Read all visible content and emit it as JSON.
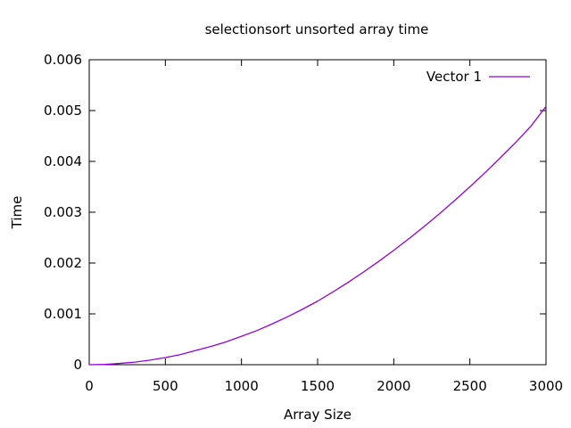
{
  "chart_data": {
    "type": "line",
    "title": "selectionsort unsorted array time",
    "xlabel": "Array Size",
    "ylabel": "Time",
    "xlim": [
      0,
      3000
    ],
    "ylim": [
      0,
      0.006
    ],
    "x_ticks": [
      "0",
      "500",
      "1000",
      "1500",
      "2000",
      "2500",
      "3000"
    ],
    "y_ticks": [
      "0",
      "0.001",
      "0.002",
      "0.003",
      "0.004",
      "0.005",
      "0.006"
    ],
    "grid": false,
    "legend": "top-right",
    "series": [
      {
        "name": "Vector 1",
        "color": "#9400d3",
        "x": [
          0,
          100,
          200,
          300,
          400,
          500,
          600,
          700,
          800,
          900,
          1000,
          1100,
          1200,
          1300,
          1400,
          1500,
          1600,
          1700,
          1800,
          1900,
          2000,
          2100,
          2200,
          2300,
          2400,
          2500,
          2600,
          2700,
          2800,
          2900,
          3000
        ],
        "y": [
          0,
          5e-06,
          2.5e-05,
          5e-05,
          9e-05,
          0.00014,
          0.0002,
          0.00028,
          0.00036,
          0.00045,
          0.00056,
          0.00067,
          0.0008,
          0.00094,
          0.00109,
          0.00125,
          0.00143,
          0.00162,
          0.00182,
          0.00203,
          0.00225,
          0.00248,
          0.00272,
          0.00297,
          0.00323,
          0.0035,
          0.00378,
          0.00407,
          0.00437,
          0.00469,
          0.00508
        ]
      }
    ]
  }
}
